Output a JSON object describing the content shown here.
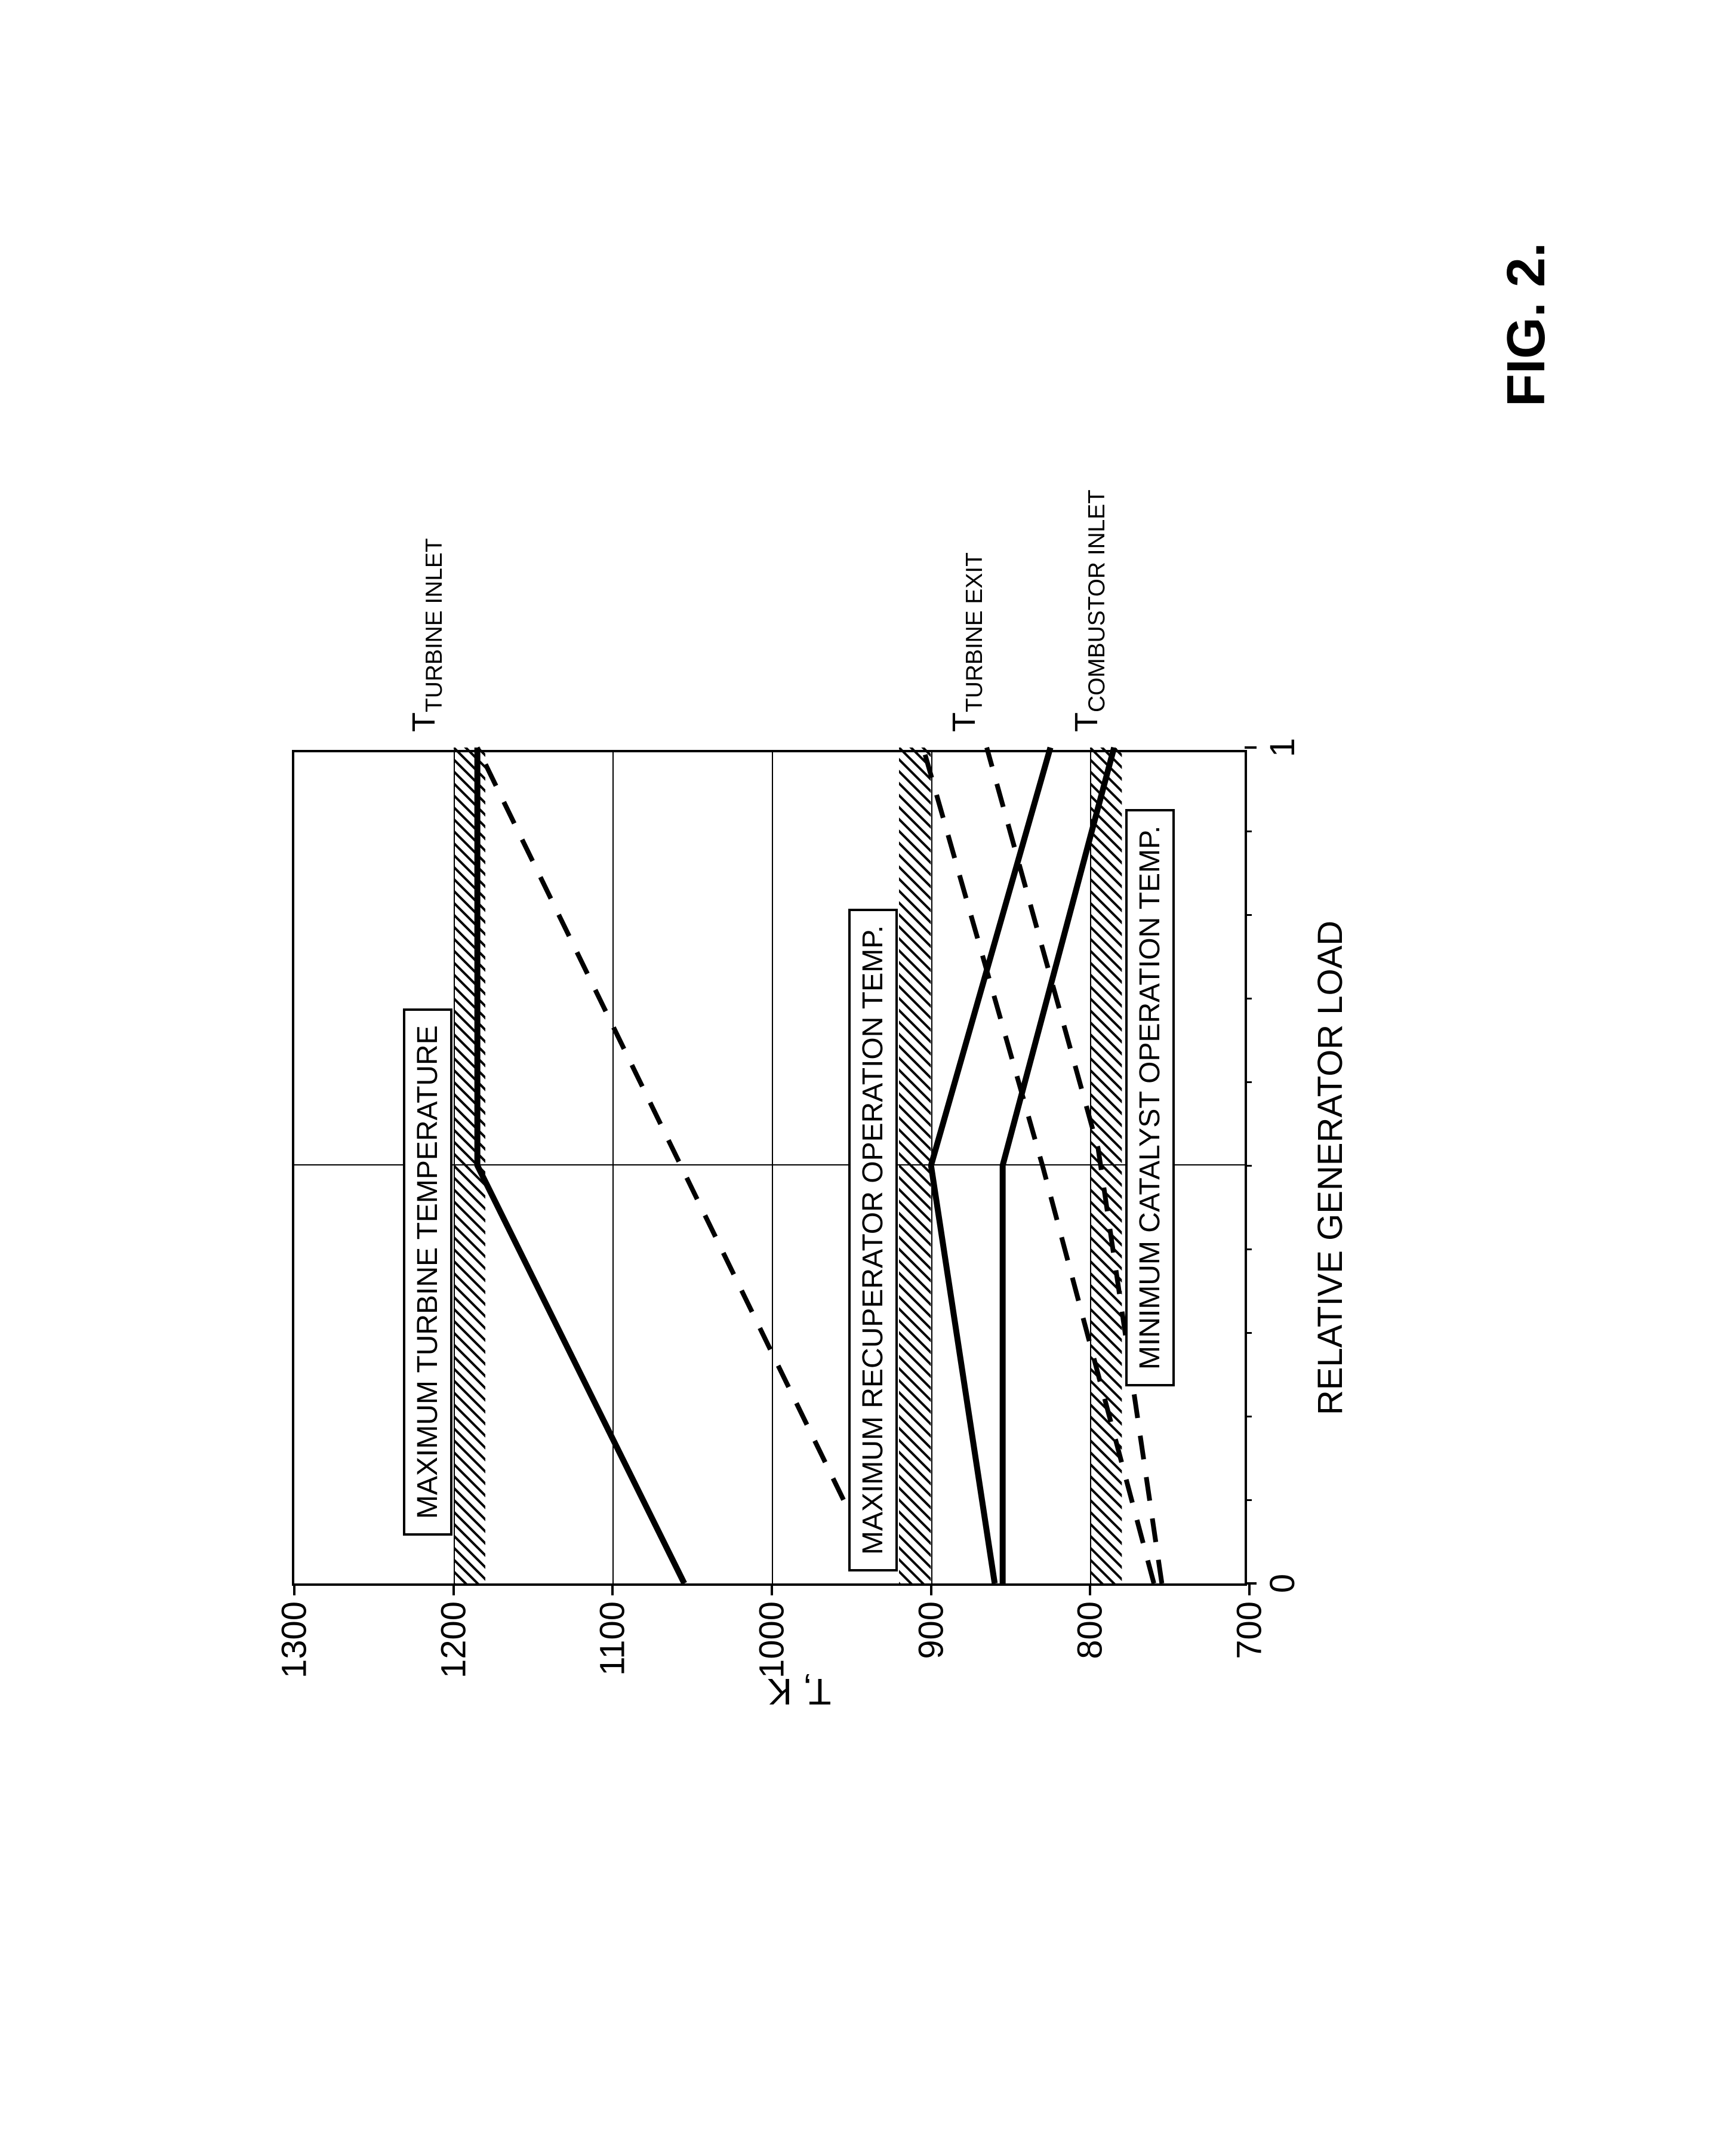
{
  "figure_label": "FIG. 2.",
  "chart": {
    "type": "line",
    "xlabel": "RELATIVE GENERATOR LOAD",
    "ylabel": "T, K",
    "label_fontsize": 60,
    "tick_fontsize": 58,
    "xlim": [
      0,
      1
    ],
    "ylim": [
      700,
      1300
    ],
    "xtick_major": [
      0,
      1
    ],
    "xtick_minor_step": 0.1,
    "ytick_step": 100,
    "yticks": [
      700,
      800,
      900,
      1000,
      1100,
      1200,
      1300
    ],
    "grid_color": "#000000",
    "background_color": "#ffffff",
    "hatched_bands": [
      {
        "y_low": 1180,
        "y_high": 1200,
        "label": "MAXIMUM TURBINE TEMPERATURE"
      },
      {
        "y_low": 900,
        "y_high": 920,
        "label": "MAXIMUM RECUPERATOR OPERATION TEMP."
      },
      {
        "y_low": 780,
        "y_high": 800,
        "label": "MINIMUM CATALYST OPERATION TEMP."
      }
    ],
    "series": [
      {
        "name": "turbine_inlet_solid",
        "label": "T",
        "sublabel": "TURBINE INLET",
        "style": "solid",
        "line_width": 10,
        "color": "#000000",
        "points": [
          [
            0.0,
            1055
          ],
          [
            0.5,
            1185
          ],
          [
            1.0,
            1185
          ]
        ]
      },
      {
        "name": "turbine_inlet_dashed",
        "style": "dashed",
        "line_width": 8,
        "dash": "40 30",
        "color": "#000000",
        "points": [
          [
            0.1,
            955
          ],
          [
            1.0,
            1185
          ]
        ]
      },
      {
        "name": "turbine_exit_solid",
        "label": "T",
        "sublabel": "TURBINE EXIT",
        "style": "solid",
        "line_width": 10,
        "color": "#000000",
        "points": [
          [
            0.0,
            860
          ],
          [
            0.5,
            900
          ],
          [
            1.0,
            825
          ]
        ]
      },
      {
        "name": "turbine_exit_dashed",
        "style": "dashed",
        "line_width": 8,
        "dash": "40 30",
        "color": "#000000",
        "points": [
          [
            0.0,
            760
          ],
          [
            0.5,
            830
          ],
          [
            1.0,
            905
          ]
        ]
      },
      {
        "name": "combustor_inlet_solid",
        "label": "T",
        "sublabel": "COMBUSTOR INLET",
        "style": "solid",
        "line_width": 10,
        "color": "#000000",
        "points": [
          [
            0.0,
            855
          ],
          [
            0.5,
            855
          ],
          [
            1.0,
            785
          ]
        ]
      },
      {
        "name": "combustor_inlet_dashed",
        "style": "dashed",
        "line_width": 8,
        "dash": "40 30",
        "color": "#000000",
        "points": [
          [
            0.0,
            755
          ],
          [
            0.52,
            795
          ],
          [
            1.0,
            865
          ]
        ]
      }
    ]
  }
}
